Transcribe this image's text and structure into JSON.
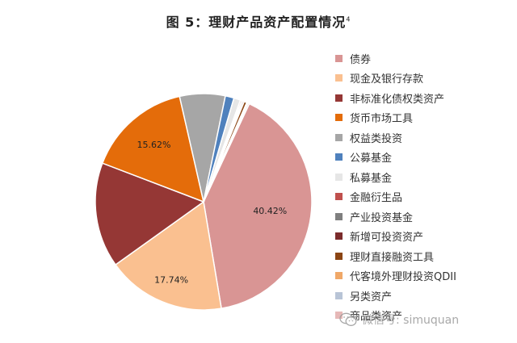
{
  "title": "图 5：理财产品资产配置情况",
  "title_note": "4",
  "watermark": "微信号: simuquan",
  "chart_data": {
    "type": "pie",
    "title": "图 5：理财产品资产配置情况",
    "start_angle_deg": -65,
    "direction": "clockwise",
    "slices": [
      {
        "name": "债券",
        "value": 40.42,
        "color": "#d99594",
        "label": "40.42%"
      },
      {
        "name": "现金及银行存款",
        "value": 17.74,
        "color": "#fac090",
        "label": "17.74%"
      },
      {
        "name": "非标准化债权类资产",
        "value": 15.7,
        "color": "#953735",
        "label": ""
      },
      {
        "name": "货币市场工具",
        "value": 15.62,
        "color": "#e46c0a",
        "label": "15.62%"
      },
      {
        "name": "权益类投资",
        "value": 6.8,
        "color": "#a6a6a6",
        "label": ""
      },
      {
        "name": "公募基金",
        "value": 1.3,
        "color": "#4f81bd",
        "label": ""
      },
      {
        "name": "私募基金",
        "value": 1.0,
        "color": "#e6e6e6",
        "label": ""
      },
      {
        "name": "金融衍生品",
        "value": 0.2,
        "color": "#c0504d",
        "label": ""
      },
      {
        "name": "产业投资基金",
        "value": 0.2,
        "color": "#7f7f7f",
        "label": ""
      },
      {
        "name": "新增可投资资产",
        "value": 0.2,
        "color": "#7b2c2c",
        "label": ""
      },
      {
        "name": "理财直接融资工具",
        "value": 0.4,
        "color": "#8b4513",
        "label": ""
      },
      {
        "name": "代客境外理财投资QDII",
        "value": 0.1,
        "color": "#f0a868",
        "label": ""
      },
      {
        "name": "另类资产",
        "value": 0.1,
        "color": "#b8c4d6",
        "label": ""
      },
      {
        "name": "商品类资产",
        "value": 0.21,
        "color": "#e6b8b7",
        "label": ""
      }
    ]
  }
}
